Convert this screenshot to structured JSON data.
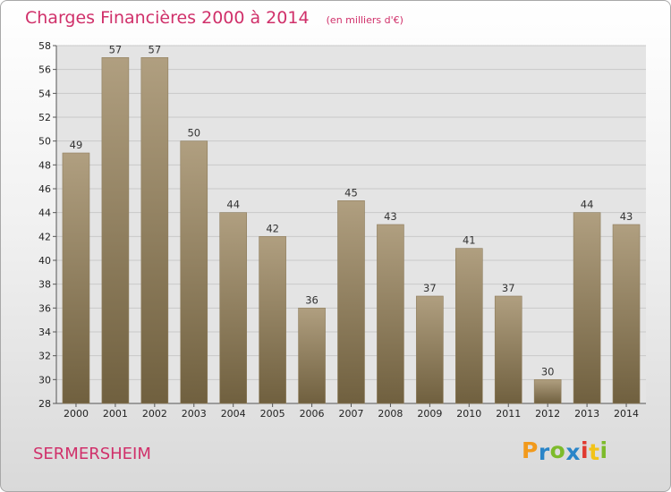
{
  "header": {
    "title": "Charges Financières 2000 à 2014",
    "unit": "(en milliers d'€)"
  },
  "footer": {
    "place": "SERMERSHEIM",
    "logo_letters": [
      "P",
      "r",
      "o",
      "x",
      "i",
      "t",
      "i"
    ],
    "logo_colors": [
      "#f29a1c",
      "#2a85c8",
      "#7dbb2b",
      "#2a85c8",
      "#e0392f",
      "#f2c318",
      "#7dbb2b"
    ]
  },
  "colors": {
    "bar_light": "#b09f80",
    "bar_dark": "#70603f",
    "plot_bg": "#e4e4e4",
    "grid": "#c9c9c9",
    "accent": "#d0306a"
  },
  "chart_data": {
    "type": "bar",
    "title": "Charges Financières 2000 à 2014",
    "subtitle": "(en milliers d'€)",
    "xlabel": "",
    "ylabel": "",
    "categories": [
      "2000",
      "2001",
      "2002",
      "2003",
      "2004",
      "2005",
      "2006",
      "2007",
      "2008",
      "2009",
      "2010",
      "2011",
      "2012",
      "2013",
      "2014"
    ],
    "values": [
      49,
      57,
      57,
      50,
      44,
      42,
      36,
      45,
      43,
      37,
      41,
      37,
      30,
      44,
      43
    ],
    "ylim": [
      28,
      58
    ],
    "yticks": [
      28,
      30,
      32,
      34,
      36,
      38,
      40,
      42,
      44,
      46,
      48,
      50,
      52,
      54,
      56,
      58
    ],
    "grid": true,
    "data_labels": true,
    "legend": "none"
  }
}
